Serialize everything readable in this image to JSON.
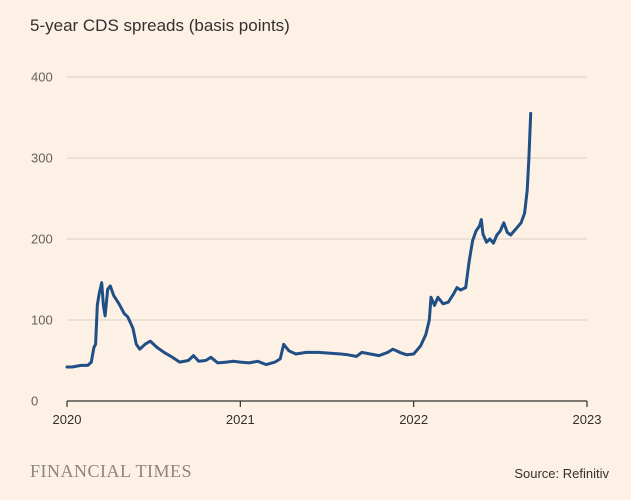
{
  "title": "5-year CDS spreads (basis points)",
  "brand": "FINANCIAL TIMES",
  "source": "Source: Refinitiv",
  "colors": {
    "line": "#1f4f84",
    "grid": "#d9cec4",
    "axis": "#33302e",
    "background": "#fdf1e6"
  },
  "chart_data": {
    "type": "line",
    "title": "5-year CDS spreads (basis points)",
    "xlabel": "",
    "ylabel": "",
    "x_ticks": [
      "2020",
      "2021",
      "2022",
      "2023"
    ],
    "y_ticks": [
      "0",
      "100",
      "200",
      "300",
      "400"
    ],
    "xlim": [
      2020.0,
      2023.0
    ],
    "ylim": [
      0,
      400
    ],
    "grid": true,
    "series": [
      {
        "points": [
          [
            2020.0,
            42
          ],
          [
            2020.03,
            42
          ],
          [
            2020.08,
            44
          ],
          [
            2020.12,
            44
          ],
          [
            2020.14,
            48
          ],
          [
            2020.155,
            66
          ],
          [
            2020.165,
            70
          ],
          [
            2020.175,
            118
          ],
          [
            2020.185,
            132
          ],
          [
            2020.2,
            146
          ],
          [
            2020.21,
            118
          ],
          [
            2020.22,
            105
          ],
          [
            2020.235,
            138
          ],
          [
            2020.25,
            142
          ],
          [
            2020.27,
            130
          ],
          [
            2020.3,
            120
          ],
          [
            2020.33,
            108
          ],
          [
            2020.35,
            104
          ],
          [
            2020.38,
            90
          ],
          [
            2020.4,
            70
          ],
          [
            2020.42,
            64
          ],
          [
            2020.45,
            70
          ],
          [
            2020.48,
            74
          ],
          [
            2020.52,
            66
          ],
          [
            2020.56,
            60
          ],
          [
            2020.6,
            55
          ],
          [
            2020.65,
            48
          ],
          [
            2020.7,
            50
          ],
          [
            2020.73,
            56
          ],
          [
            2020.76,
            49
          ],
          [
            2020.8,
            50
          ],
          [
            2020.83,
            54
          ],
          [
            2020.87,
            47
          ],
          [
            2020.92,
            48
          ],
          [
            2020.96,
            49
          ],
          [
            2021.0,
            48
          ],
          [
            2021.05,
            47
          ],
          [
            2021.1,
            49
          ],
          [
            2021.15,
            45
          ],
          [
            2021.2,
            48
          ],
          [
            2021.23,
            52
          ],
          [
            2021.25,
            70
          ],
          [
            2021.28,
            62
          ],
          [
            2021.32,
            58
          ],
          [
            2021.38,
            60
          ],
          [
            2021.45,
            60
          ],
          [
            2021.52,
            59
          ],
          [
            2021.58,
            58
          ],
          [
            2021.62,
            57
          ],
          [
            2021.67,
            55
          ],
          [
            2021.7,
            60
          ],
          [
            2021.75,
            58
          ],
          [
            2021.8,
            56
          ],
          [
            2021.85,
            60
          ],
          [
            2021.88,
            64
          ],
          [
            2021.92,
            60
          ],
          [
            2021.96,
            57
          ],
          [
            2022.0,
            58
          ],
          [
            2022.04,
            68
          ],
          [
            2022.07,
            82
          ],
          [
            2022.09,
            100
          ],
          [
            2022.1,
            128
          ],
          [
            2022.12,
            118
          ],
          [
            2022.14,
            128
          ],
          [
            2022.17,
            120
          ],
          [
            2022.2,
            122
          ],
          [
            2022.23,
            132
          ],
          [
            2022.25,
            140
          ],
          [
            2022.27,
            137
          ],
          [
            2022.3,
            140
          ],
          [
            2022.32,
            172
          ],
          [
            2022.34,
            198
          ],
          [
            2022.36,
            210
          ],
          [
            2022.38,
            216
          ],
          [
            2022.39,
            224
          ],
          [
            2022.4,
            206
          ],
          [
            2022.42,
            196
          ],
          [
            2022.44,
            200
          ],
          [
            2022.46,
            195
          ],
          [
            2022.48,
            205
          ],
          [
            2022.5,
            210
          ],
          [
            2022.52,
            220
          ],
          [
            2022.54,
            208
          ],
          [
            2022.56,
            205
          ],
          [
            2022.58,
            210
          ],
          [
            2022.6,
            215
          ],
          [
            2022.62,
            220
          ],
          [
            2022.64,
            232
          ],
          [
            2022.655,
            260
          ],
          [
            2022.665,
            300
          ],
          [
            2022.675,
            355
          ]
        ]
      }
    ]
  }
}
